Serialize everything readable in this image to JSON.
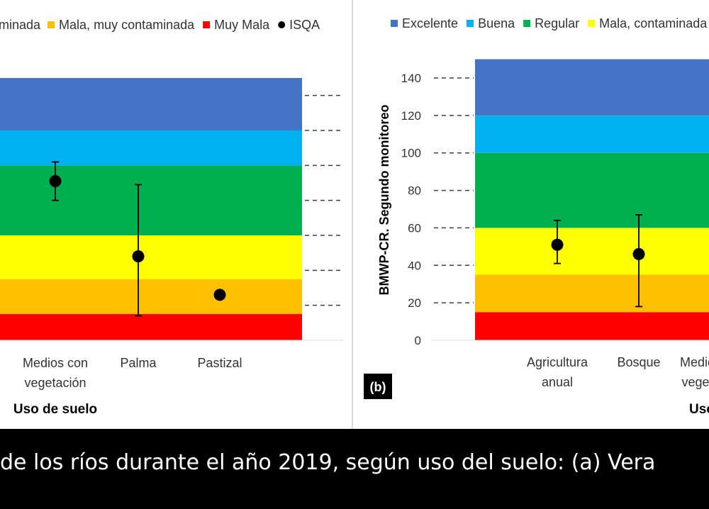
{
  "caption": "de los ríos durante el año 2019, según uso del suelo: (a) Vera",
  "legend": [
    {
      "label": "Excelente",
      "color": "#4472C4"
    },
    {
      "label": "Buena",
      "color": "#00B0F0"
    },
    {
      "label": "Regular",
      "color": "#00B050"
    },
    {
      "label": "Mala, contaminada",
      "color": "#FFFF00"
    },
    {
      "label": "Mala, muy contaminada",
      "color": "#FFC000"
    },
    {
      "label": "Muy Mala",
      "color": "#FF0000"
    },
    {
      "label": "ISQA",
      "color": "#000000"
    }
  ],
  "left_legend_partial": "minada",
  "chart_data": [
    {
      "panel": "a",
      "type": "scatter",
      "xlabel": "Uso de suelo",
      "categories": [
        "Medios con vegetación",
        "Palma",
        "Pastizal"
      ],
      "ylim": [
        0,
        150
      ],
      "bands": [
        {
          "from": 0,
          "to": 15,
          "color": "#FF0000"
        },
        {
          "from": 15,
          "to": 35,
          "color": "#FFC000"
        },
        {
          "from": 35,
          "to": 60,
          "color": "#FFFF00"
        },
        {
          "from": 60,
          "to": 100,
          "color": "#00B050"
        },
        {
          "from": 100,
          "to": 120,
          "color": "#00B0F0"
        },
        {
          "from": 120,
          "to": 150,
          "color": "#4472C4"
        }
      ],
      "points": [
        {
          "category": "Medios con vegetación",
          "value": 91,
          "low": 80,
          "high": 102
        },
        {
          "category": "Palma",
          "value": 48,
          "low": 14,
          "high": 89
        },
        {
          "category": "Pastizal",
          "value": 26
        }
      ]
    },
    {
      "panel": "b",
      "label": "(b)",
      "type": "scatter",
      "ylabel": "BMWP-CR. Segundo monitoreo",
      "xlabel": "Uso",
      "categories": [
        "Agricultura anual",
        "Bosque",
        "Medios con vegetación"
      ],
      "yticks": [
        "0",
        "20",
        "40",
        "60",
        "80",
        "100",
        "120",
        "140"
      ],
      "ylim": [
        0,
        140
      ],
      "bands": [
        {
          "from": 0,
          "to": 15,
          "color": "#FF0000"
        },
        {
          "from": 15,
          "to": 35,
          "color": "#FFC000"
        },
        {
          "from": 35,
          "to": 60,
          "color": "#FFFF00"
        },
        {
          "from": 60,
          "to": 100,
          "color": "#00B050"
        },
        {
          "from": 100,
          "to": 120,
          "color": "#00B0F0"
        },
        {
          "from": 120,
          "to": 150,
          "color": "#4472C4"
        }
      ],
      "points": [
        {
          "category": "Agricultura anual",
          "value": 51,
          "low": 41,
          "high": 64
        },
        {
          "category": "Bosque",
          "value": 46,
          "low": 18,
          "high": 67
        }
      ]
    }
  ]
}
